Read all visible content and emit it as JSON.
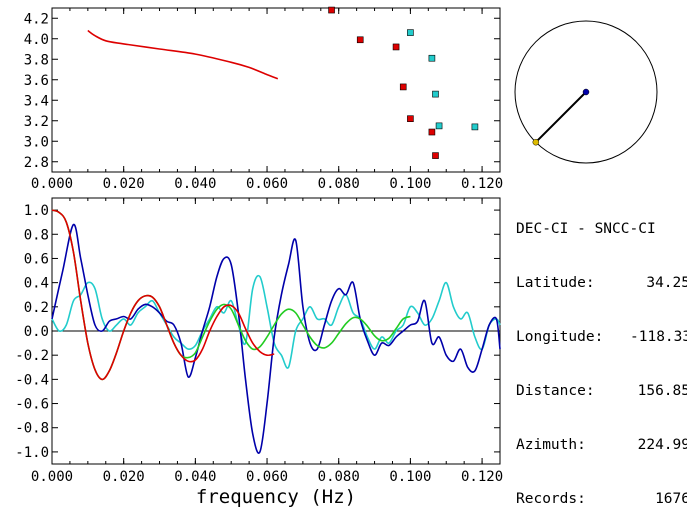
{
  "station": {
    "title": "DEC-CI - SNCC-CI",
    "rows": [
      {
        "label": "Latitude:",
        "value": "34.25"
      },
      {
        "label": "Longitude:",
        "value": "-118.33"
      },
      {
        "label": "Distance:",
        "value": "156.85"
      },
      {
        "label": "Azimuth:",
        "value": "224.99"
      },
      {
        "label": "Records:",
        "value": "1676"
      }
    ]
  },
  "colors": {
    "red": "#dd0000",
    "blue": "#0000aa",
    "cyan": "#22cccc",
    "green": "#22cc22",
    "black": "#000000"
  },
  "chart_data": [
    {
      "type": "scatter",
      "name": "dispersion",
      "xlim": [
        0.0,
        0.125
      ],
      "ylim": [
        2.7,
        4.3
      ],
      "xticks": [
        "0.000",
        "0.020",
        "0.040",
        "0.060",
        "0.080",
        "0.100",
        "0.120"
      ],
      "yticks": [
        "4.2",
        "4.0",
        "3.8",
        "3.6",
        "3.4",
        "3.2",
        "3.0",
        "2.8"
      ],
      "series": [
        {
          "name": "red-curve",
          "kind": "line",
          "color": "red",
          "x": [
            0.01,
            0.012,
            0.015,
            0.02,
            0.03,
            0.04,
            0.05,
            0.055,
            0.06,
            0.063
          ],
          "y": [
            4.08,
            4.03,
            3.98,
            3.95,
            3.9,
            3.85,
            3.77,
            3.72,
            3.65,
            3.61
          ]
        },
        {
          "name": "red-squares",
          "kind": "markers",
          "color": "red",
          "x": [
            0.078,
            0.086,
            0.096,
            0.098,
            0.1,
            0.106,
            0.107
          ],
          "y": [
            4.28,
            3.99,
            3.92,
            3.53,
            3.22,
            3.09,
            2.86
          ]
        },
        {
          "name": "cyan-squares",
          "kind": "markers",
          "color": "cyan",
          "x": [
            0.1,
            0.106,
            0.107,
            0.108,
            0.118
          ],
          "y": [
            4.06,
            3.81,
            3.46,
            3.15,
            3.14
          ]
        }
      ]
    },
    {
      "type": "line",
      "name": "spectra",
      "xlim": [
        0.0,
        0.125
      ],
      "ylim": [
        -1.1,
        1.1
      ],
      "xticks": [
        "0.000",
        "0.020",
        "0.040",
        "0.060",
        "0.080",
        "0.100",
        "0.120"
      ],
      "yticks": [
        "1.0",
        "0.8",
        "0.6",
        "0.4",
        "0.2",
        "0.0",
        "-0.2",
        "-0.4",
        "-0.6",
        "-0.8",
        "-1.0"
      ],
      "xlabel": "frequency (Hz)",
      "series": [
        {
          "name": "blue",
          "color": "blue",
          "x": [
            0.0,
            0.003,
            0.006,
            0.008,
            0.01,
            0.012,
            0.014,
            0.016,
            0.018,
            0.02,
            0.022,
            0.024,
            0.026,
            0.028,
            0.03,
            0.032,
            0.034,
            0.036,
            0.038,
            0.04,
            0.042,
            0.044,
            0.046,
            0.048,
            0.05,
            0.052,
            0.054,
            0.056,
            0.058,
            0.06,
            0.062,
            0.064,
            0.066,
            0.068,
            0.07,
            0.072,
            0.074,
            0.076,
            0.078,
            0.08,
            0.082,
            0.084,
            0.086,
            0.088,
            0.09,
            0.092,
            0.094,
            0.096,
            0.098,
            0.1,
            0.102,
            0.104,
            0.106,
            0.108,
            0.11,
            0.112,
            0.114,
            0.116,
            0.118,
            0.12,
            0.122,
            0.124,
            0.125
          ],
          "y": [
            0.1,
            0.5,
            0.88,
            0.6,
            0.3,
            0.05,
            0.0,
            0.08,
            0.1,
            0.12,
            0.1,
            0.18,
            0.22,
            0.2,
            0.15,
            0.08,
            0.05,
            -0.1,
            -0.38,
            -0.22,
            0.0,
            0.2,
            0.45,
            0.6,
            0.55,
            0.15,
            -0.4,
            -0.85,
            -1.0,
            -0.6,
            -0.05,
            0.3,
            0.55,
            0.75,
            0.2,
            -0.1,
            -0.15,
            0.05,
            0.25,
            0.35,
            0.3,
            0.4,
            0.1,
            -0.08,
            -0.2,
            -0.1,
            -0.12,
            -0.05,
            0.0,
            0.05,
            0.08,
            0.25,
            -0.1,
            -0.05,
            -0.2,
            -0.25,
            -0.15,
            -0.3,
            -0.33,
            -0.15,
            0.05,
            0.1,
            -0.15
          ]
        },
        {
          "name": "red",
          "color": "red",
          "x": [
            0.0,
            0.002,
            0.004,
            0.006,
            0.008,
            0.01,
            0.012,
            0.014,
            0.016,
            0.018,
            0.02,
            0.022,
            0.024,
            0.026,
            0.028,
            0.03,
            0.032,
            0.034,
            0.036,
            0.038,
            0.04,
            0.042,
            0.044,
            0.046,
            0.048,
            0.05,
            0.052,
            0.054,
            0.056,
            0.058,
            0.06,
            0.062
          ],
          "y": [
            1.0,
            0.98,
            0.9,
            0.65,
            0.25,
            -0.1,
            -0.32,
            -0.4,
            -0.33,
            -0.18,
            0.0,
            0.15,
            0.25,
            0.29,
            0.28,
            0.2,
            0.05,
            -0.1,
            -0.2,
            -0.25,
            -0.24,
            -0.15,
            0.0,
            0.12,
            0.2,
            0.21,
            0.15,
            0.02,
            -0.1,
            -0.17,
            -0.2,
            -0.19
          ]
        },
        {
          "name": "green",
          "color": "green",
          "x": [
            0.0,
            0.002,
            0.004,
            0.006,
            0.008,
            0.01,
            0.012,
            0.014,
            0.016,
            0.018,
            0.02,
            0.022,
            0.024,
            0.026,
            0.028,
            0.03,
            0.032,
            0.034,
            0.036,
            0.038,
            0.04,
            0.042,
            0.044,
            0.046,
            0.048,
            0.05,
            0.052,
            0.054,
            0.056,
            0.058,
            0.06,
            0.062,
            0.064,
            0.066,
            0.068,
            0.07,
            0.072,
            0.074,
            0.076,
            0.078,
            0.08,
            0.082,
            0.084,
            0.086,
            0.088,
            0.09,
            0.092,
            0.094,
            0.096,
            0.098,
            0.1
          ],
          "y": [
            1.0,
            0.98,
            0.9,
            0.65,
            0.25,
            -0.1,
            -0.32,
            -0.4,
            -0.33,
            -0.18,
            0.0,
            0.15,
            0.25,
            0.29,
            0.28,
            0.2,
            0.05,
            -0.1,
            -0.2,
            -0.22,
            -0.18,
            -0.05,
            0.08,
            0.18,
            0.22,
            0.18,
            0.05,
            -0.08,
            -0.15,
            -0.13,
            -0.05,
            0.05,
            0.14,
            0.18,
            0.15,
            0.05,
            -0.05,
            -0.12,
            -0.14,
            -0.1,
            -0.02,
            0.06,
            0.11,
            0.1,
            0.04,
            -0.04,
            -0.08,
            -0.06,
            0.02,
            0.1,
            0.12
          ]
        },
        {
          "name": "cyan",
          "color": "cyan",
          "x": [
            0.0,
            0.002,
            0.004,
            0.006,
            0.008,
            0.01,
            0.012,
            0.014,
            0.016,
            0.018,
            0.02,
            0.022,
            0.024,
            0.026,
            0.028,
            0.03,
            0.032,
            0.034,
            0.036,
            0.038,
            0.04,
            0.042,
            0.044,
            0.046,
            0.048,
            0.05,
            0.052,
            0.054,
            0.056,
            0.058,
            0.06,
            0.062,
            0.064,
            0.066,
            0.068,
            0.07,
            0.072,
            0.074,
            0.076,
            0.078,
            0.08,
            0.082,
            0.084,
            0.086,
            0.088,
            0.09,
            0.092,
            0.094,
            0.096,
            0.098,
            0.1,
            0.102,
            0.104,
            0.106,
            0.108,
            0.11,
            0.112,
            0.114,
            0.116,
            0.118,
            0.12,
            0.122,
            0.124,
            0.125
          ],
          "y": [
            0.1,
            0.0,
            0.05,
            0.25,
            0.3,
            0.4,
            0.35,
            0.1,
            0.0,
            0.05,
            0.1,
            0.05,
            0.15,
            0.2,
            0.25,
            0.15,
            0.05,
            -0.05,
            -0.1,
            -0.15,
            -0.12,
            0.0,
            0.1,
            0.2,
            0.15,
            0.25,
            0.05,
            -0.1,
            0.35,
            0.45,
            0.2,
            -0.1,
            -0.2,
            -0.3,
            0.0,
            0.1,
            0.2,
            0.1,
            0.1,
            0.05,
            0.2,
            0.3,
            0.15,
            0.1,
            -0.05,
            -0.15,
            -0.05,
            -0.1,
            0.0,
            0.05,
            0.2,
            0.15,
            0.05,
            0.1,
            0.25,
            0.4,
            0.2,
            0.1,
            0.15,
            -0.05,
            -0.15,
            0.05,
            0.1,
            0.05
          ]
        }
      ]
    },
    {
      "type": "polar",
      "name": "azimuth-dial",
      "azimuth_deg": 224.99,
      "length_fraction": 1.0
    }
  ]
}
